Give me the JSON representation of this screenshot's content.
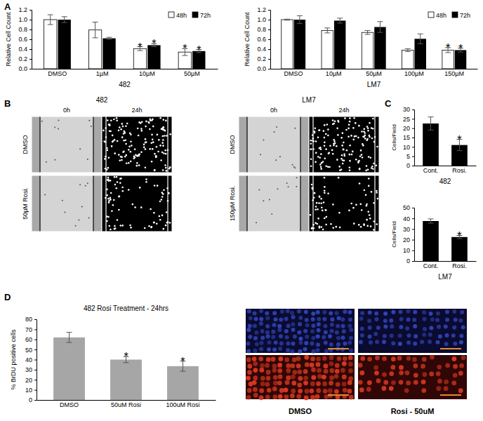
{
  "chart_data": [
    {
      "type": "bar",
      "ylabel": "Relative Cell Count",
      "xlabel": "482",
      "categories": [
        "DMSO",
        "1µM",
        "10µM",
        "50µM"
      ],
      "series": [
        {
          "name": "48h",
          "color": "#ffffff",
          "values": [
            1.0,
            0.79,
            0.41,
            0.34
          ],
          "errors": [
            0.1,
            0.16,
            0.04,
            0.07
          ]
        },
        {
          "name": "72h",
          "color": "#000000",
          "values": [
            1.0,
            0.62,
            0.48,
            0.36
          ],
          "errors": [
            0.06,
            0.02,
            0.03,
            0.03
          ]
        }
      ],
      "ylim": [
        0,
        1.2
      ],
      "yticks": [
        {
          "value": 0,
          "label": "0.0"
        },
        0.2,
        0.4,
        0.6,
        0.8,
        {
          "value": 1,
          "label": "1.0"
        },
        1.2
      ],
      "legend": "upper right",
      "annotations": [
        {
          "text": "*",
          "category": 2,
          "series": 0
        },
        {
          "text": "*",
          "category": 2,
          "series": 1
        },
        {
          "text": "*",
          "category": 3,
          "series": 0
        },
        {
          "text": "*",
          "category": 3,
          "series": 1
        }
      ]
    },
    {
      "type": "bar",
      "ylabel": "Relative Cell Count",
      "xlabel": "LM7",
      "categories": [
        "DMSO",
        "10µM",
        "50µM",
        "100µM",
        "150µM"
      ],
      "series": [
        {
          "name": "48h",
          "color": "#ffffff",
          "values": [
            1.0,
            0.78,
            0.74,
            0.38,
            0.38
          ],
          "errors": [
            0.01,
            0.05,
            0.04,
            0.03,
            0.05
          ]
        },
        {
          "name": "72h",
          "color": "#000000",
          "values": [
            1.0,
            0.98,
            0.85,
            0.61,
            0.38
          ],
          "errors": [
            0.08,
            0.05,
            0.11,
            0.1,
            0.04
          ]
        }
      ],
      "ylim": [
        0,
        1.2
      ],
      "yticks": [
        {
          "value": 0,
          "label": "0.0"
        },
        0.2,
        0.4,
        0.6,
        0.8,
        {
          "value": 1,
          "label": "1.0"
        },
        1.2
      ],
      "legend": "upper right",
      "annotations": [
        {
          "text": "*",
          "category": 4,
          "series": 0
        },
        {
          "text": "*",
          "category": 4,
          "series": 1
        }
      ]
    },
    {
      "type": "bar",
      "xlabel": "482",
      "ylabel": "Cells/Field",
      "categories": [
        "Cont.",
        "Rosi."
      ],
      "values": [
        22.5,
        11
      ],
      "errors": [
        3.5,
        3
      ],
      "color": "#000000",
      "ylim": [
        0,
        30
      ],
      "yticks": [
        0,
        5,
        10,
        15,
        20,
        25,
        30
      ],
      "annotations": [
        {
          "text": "*",
          "category": 1,
          "series": 0
        }
      ]
    },
    {
      "type": "bar",
      "xlabel": "LM7",
      "ylabel": "Cells/Field",
      "categories": [
        "Cont.",
        "Rosi."
      ],
      "values": [
        37.5,
        22.5
      ],
      "errors": [
        2,
        1.5
      ],
      "color": "#000000",
      "ylim": [
        0,
        50
      ],
      "yticks": [
        0,
        10,
        20,
        30,
        40,
        50
      ],
      "annotations": [
        {
          "text": "*",
          "category": 1,
          "series": 0
        }
      ]
    },
    {
      "type": "bar",
      "title": "482 Rosi Treatment - 24hrs",
      "ylabel": "% BrDU positive cells",
      "categories": [
        "DMSO",
        "50uM Rosi",
        "100uM Rosi"
      ],
      "values": [
        62,
        40,
        33.5
      ],
      "errors": [
        5,
        3,
        5
      ],
      "color": "#a6a6a6",
      "ylim": [
        0,
        80
      ],
      "yticks": [
        0,
        10,
        20,
        30,
        40,
        50,
        60,
        70,
        80
      ],
      "annotations": [
        {
          "text": "*",
          "category": 1,
          "series": 0
        },
        {
          "text": "*",
          "category": 2,
          "series": 0
        }
      ]
    }
  ],
  "panel_labels": [
    "A",
    "B",
    "C",
    "D"
  ],
  "image_panels": [
    {
      "title": "482",
      "columns": [
        "0h",
        "24h"
      ],
      "rows": [
        "DMSO",
        "50µM Rosi."
      ]
    },
    {
      "title": "LM7",
      "columns": [
        "0h",
        "24h"
      ],
      "rows": [
        "DMSO",
        "150µM Rosi."
      ]
    }
  ],
  "micrographs": {
    "labels": [
      "DMSO",
      "Rosi - 50uM"
    ]
  }
}
